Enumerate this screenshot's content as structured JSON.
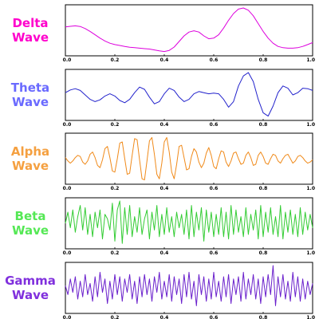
{
  "chart_data": [
    {
      "type": "line",
      "title": "",
      "label_lines": [
        "Delta",
        "Wave"
      ],
      "label_color": "#ff00cc",
      "line_color": "#dd00dd",
      "xlim": [
        0,
        1
      ],
      "ylim": [
        -1,
        1
      ],
      "x_ticks": [
        "0.0",
        "0.2",
        "0.4",
        "0.6",
        "0.8",
        "1.0"
      ],
      "grid": false,
      "series": [
        {
          "x": [
            0.0,
            0.02,
            0.04,
            0.06,
            0.08,
            0.1,
            0.12,
            0.14,
            0.16,
            0.18,
            0.2,
            0.22,
            0.24,
            0.26,
            0.28,
            0.3,
            0.32,
            0.34,
            0.36,
            0.38,
            0.4,
            0.42,
            0.44,
            0.46,
            0.48,
            0.5,
            0.52,
            0.54,
            0.56,
            0.58,
            0.6,
            0.62,
            0.64,
            0.66,
            0.68,
            0.7,
            0.72,
            0.74,
            0.76,
            0.78,
            0.8,
            0.82,
            0.84,
            0.86,
            0.88,
            0.9,
            0.92,
            0.94,
            0.96,
            0.98,
            1.0
          ],
          "values": [
            0.15,
            0.18,
            0.2,
            0.17,
            0.08,
            -0.05,
            -0.2,
            -0.35,
            -0.48,
            -0.58,
            -0.64,
            -0.68,
            -0.72,
            -0.76,
            -0.78,
            -0.8,
            -0.82,
            -0.84,
            -0.88,
            -0.92,
            -0.95,
            -0.9,
            -0.75,
            -0.5,
            -0.25,
            -0.08,
            -0.02,
            -0.08,
            -0.25,
            -0.38,
            -0.35,
            -0.2,
            0.1,
            0.45,
            0.75,
            0.95,
            1.0,
            0.9,
            0.65,
            0.3,
            -0.05,
            -0.35,
            -0.58,
            -0.72,
            -0.78,
            -0.8,
            -0.8,
            -0.78,
            -0.72,
            -0.64,
            -0.55
          ]
        }
      ]
    },
    {
      "type": "line",
      "title": "",
      "label_lines": [
        "Theta",
        "Wave"
      ],
      "label_color": "#6a6aff",
      "line_color": "#2222cc",
      "xlim": [
        0,
        1
      ],
      "ylim": [
        -1,
        1
      ],
      "x_ticks": [
        "0.0",
        "0.2",
        "0.4",
        "0.6",
        "0.8",
        "1.0"
      ],
      "grid": false,
      "series": [
        {
          "x": [
            0.0,
            0.02,
            0.04,
            0.06,
            0.08,
            0.1,
            0.12,
            0.14,
            0.16,
            0.18,
            0.2,
            0.22,
            0.24,
            0.26,
            0.28,
            0.3,
            0.32,
            0.34,
            0.36,
            0.38,
            0.4,
            0.42,
            0.44,
            0.46,
            0.48,
            0.5,
            0.52,
            0.54,
            0.56,
            0.58,
            0.6,
            0.62,
            0.64,
            0.66,
            0.68,
            0.7,
            0.72,
            0.74,
            0.76,
            0.78,
            0.8,
            0.82,
            0.84,
            0.86,
            0.88,
            0.9,
            0.92,
            0.94,
            0.96,
            0.98,
            1.0
          ],
          "values": [
            0.1,
            0.22,
            0.28,
            0.2,
            0.0,
            -0.2,
            -0.3,
            -0.22,
            -0.05,
            0.05,
            -0.05,
            -0.25,
            -0.35,
            -0.2,
            0.1,
            0.35,
            0.25,
            -0.1,
            -0.4,
            -0.3,
            0.05,
            0.3,
            0.2,
            -0.1,
            -0.3,
            -0.2,
            0.05,
            0.15,
            0.1,
            0.05,
            0.08,
            0.05,
            -0.2,
            -0.55,
            -0.3,
            0.4,
            0.85,
            1.0,
            0.6,
            -0.2,
            -0.8,
            -0.95,
            -0.5,
            0.1,
            0.4,
            0.3,
            0.0,
            0.1,
            0.3,
            0.28,
            0.2
          ]
        }
      ]
    },
    {
      "type": "line",
      "title": "",
      "label_lines": [
        "Alpha",
        "Wave"
      ],
      "label_color": "#f5a040",
      "line_color": "#f08a1a",
      "xlim": [
        0,
        1
      ],
      "ylim": [
        -1,
        1
      ],
      "x_ticks": [
        "0.0",
        "0.2",
        "0.4",
        "0.6",
        "0.8",
        "1.0"
      ],
      "grid": false,
      "series": [
        {
          "x": [
            0.0,
            0.01,
            0.02,
            0.03,
            0.04,
            0.05,
            0.06,
            0.07,
            0.08,
            0.09,
            0.1,
            0.11,
            0.12,
            0.13,
            0.14,
            0.15,
            0.16,
            0.17,
            0.18,
            0.19,
            0.2,
            0.21,
            0.22,
            0.23,
            0.24,
            0.25,
            0.26,
            0.27,
            0.28,
            0.29,
            0.3,
            0.31,
            0.32,
            0.33,
            0.34,
            0.35,
            0.36,
            0.37,
            0.38,
            0.39,
            0.4,
            0.41,
            0.42,
            0.43,
            0.44,
            0.45,
            0.46,
            0.47,
            0.48,
            0.49,
            0.5,
            0.51,
            0.52,
            0.53,
            0.54,
            0.55,
            0.56,
            0.57,
            0.58,
            0.59,
            0.6,
            0.61,
            0.62,
            0.63,
            0.64,
            0.65,
            0.66,
            0.67,
            0.68,
            0.69,
            0.7,
            0.71,
            0.72,
            0.73,
            0.74,
            0.75,
            0.76,
            0.77,
            0.78,
            0.79,
            0.8,
            0.81,
            0.82,
            0.83,
            0.84,
            0.85,
            0.86,
            0.87,
            0.88,
            0.89,
            0.9,
            0.91,
            0.92,
            0.93,
            0.94,
            0.95,
            0.96,
            0.97,
            0.98,
            0.99,
            1.0
          ],
          "values": [
            0.05,
            -0.1,
            -0.2,
            -0.1,
            0.05,
            0.15,
            0.1,
            -0.15,
            -0.25,
            -0.1,
            0.2,
            0.3,
            0.05,
            -0.3,
            -0.4,
            -0.05,
            0.45,
            0.55,
            0.05,
            -0.55,
            -0.6,
            0.0,
            0.7,
            0.75,
            0.0,
            -0.7,
            -0.65,
            0.15,
            0.9,
            0.85,
            -0.05,
            -0.9,
            -0.95,
            -0.1,
            0.8,
            0.95,
            0.2,
            -0.7,
            -0.9,
            -0.2,
            0.75,
            0.95,
            0.3,
            -0.6,
            -0.9,
            -0.25,
            0.55,
            0.6,
            0.05,
            -0.5,
            -0.45,
            0.1,
            0.45,
            0.3,
            -0.15,
            -0.4,
            -0.2,
            0.25,
            0.5,
            0.15,
            -0.35,
            -0.45,
            0.0,
            0.35,
            0.3,
            -0.15,
            -0.35,
            -0.1,
            0.25,
            0.3,
            0.0,
            -0.25,
            -0.2,
            0.15,
            0.3,
            0.05,
            -0.3,
            -0.25,
            0.15,
            0.3,
            0.1,
            -0.2,
            -0.25,
            0.0,
            0.2,
            0.15,
            -0.1,
            -0.2,
            0.0,
            0.15,
            0.2,
            0.0,
            -0.2,
            -0.1,
            0.1,
            0.15,
            0.05,
            -0.1,
            -0.2,
            -0.15,
            -0.05
          ]
        }
      ]
    },
    {
      "type": "line",
      "title": "",
      "label_lines": [
        "Beta",
        "Wave"
      ],
      "label_color": "#55e855",
      "line_color": "#33cc33",
      "xlim": [
        0,
        1
      ],
      "ylim": [
        -1,
        1
      ],
      "x_ticks": [
        "0.0",
        "0.2",
        "0.4",
        "0.6",
        "0.8",
        "1.0"
      ],
      "grid": false,
      "series": [
        {
          "x": [
            0.0,
            0.01,
            0.02,
            0.03,
            0.04,
            0.05,
            0.06,
            0.07,
            0.08,
            0.09,
            0.1,
            0.11,
            0.12,
            0.13,
            0.14,
            0.15,
            0.16,
            0.17,
            0.18,
            0.19,
            0.2,
            0.21,
            0.22,
            0.23,
            0.24,
            0.25,
            0.26,
            0.27,
            0.28,
            0.29,
            0.3,
            0.31,
            0.32,
            0.33,
            0.34,
            0.35,
            0.36,
            0.37,
            0.38,
            0.39,
            0.4,
            0.41,
            0.42,
            0.43,
            0.44,
            0.45,
            0.46,
            0.47,
            0.48,
            0.49,
            0.5,
            0.51,
            0.52,
            0.53,
            0.54,
            0.55,
            0.56,
            0.57,
            0.58,
            0.59,
            0.6,
            0.61,
            0.62,
            0.63,
            0.64,
            0.65,
            0.66,
            0.67,
            0.68,
            0.69,
            0.7,
            0.71,
            0.72,
            0.73,
            0.74,
            0.75,
            0.76,
            0.77,
            0.78,
            0.79,
            0.8,
            0.81,
            0.82,
            0.83,
            0.84,
            0.85,
            0.86,
            0.87,
            0.88,
            0.89,
            0.9,
            0.91,
            0.92,
            0.93,
            0.94,
            0.95,
            0.96,
            0.97,
            0.98,
            0.99,
            1.0
          ],
          "values": [
            0.0,
            0.5,
            -0.2,
            0.6,
            -0.4,
            0.3,
            0.8,
            -0.3,
            0.7,
            -0.5,
            0.4,
            -0.6,
            0.5,
            -0.2,
            0.6,
            -0.7,
            0.4,
            0.2,
            -0.3,
            0.9,
            -0.8,
            0.6,
            1.0,
            -0.9,
            0.7,
            -0.5,
            0.8,
            -0.6,
            0.3,
            -0.4,
            0.7,
            -0.5,
            0.2,
            0.6,
            -0.7,
            0.5,
            -0.3,
            0.8,
            -0.6,
            0.4,
            -0.5,
            0.7,
            -0.4,
            0.3,
            -0.6,
            0.5,
            -0.2,
            0.4,
            -0.5,
            0.6,
            -0.7,
            0.8,
            -0.6,
            0.5,
            -0.3,
            0.7,
            -0.8,
            0.6,
            -0.4,
            0.5,
            -0.6,
            0.4,
            -0.5,
            0.7,
            -0.6,
            0.5,
            -0.7,
            0.8,
            -0.5,
            0.6,
            -0.4,
            0.3,
            -0.6,
            0.7,
            -0.5,
            0.4,
            -0.3,
            0.6,
            -0.7,
            0.8,
            -0.6,
            0.5,
            -0.4,
            0.7,
            -0.5,
            0.3,
            -0.6,
            0.8,
            -0.7,
            0.5,
            -0.4,
            0.6,
            -0.5,
            0.4,
            -0.6,
            0.7,
            -0.5,
            0.5,
            -0.3,
            0.4,
            -0.2
          ]
        }
      ]
    },
    {
      "type": "line",
      "title": "",
      "label_lines": [
        "Gamma",
        "Wave"
      ],
      "label_color": "#8030dd",
      "line_color": "#6a20cc",
      "xlim": [
        0,
        1
      ],
      "ylim": [
        -1,
        1
      ],
      "x_ticks": [
        "0.0",
        "0.2",
        "0.4",
        "0.6",
        "0.8",
        "1.0"
      ],
      "grid": false,
      "series": [
        {
          "x": [
            0.0,
            0.01,
            0.02,
            0.03,
            0.04,
            0.05,
            0.06,
            0.07,
            0.08,
            0.09,
            0.1,
            0.11,
            0.12,
            0.13,
            0.14,
            0.15,
            0.16,
            0.17,
            0.18,
            0.19,
            0.2,
            0.21,
            0.22,
            0.23,
            0.24,
            0.25,
            0.26,
            0.27,
            0.28,
            0.29,
            0.3,
            0.31,
            0.32,
            0.33,
            0.34,
            0.35,
            0.36,
            0.37,
            0.38,
            0.39,
            0.4,
            0.41,
            0.42,
            0.43,
            0.44,
            0.45,
            0.46,
            0.47,
            0.48,
            0.49,
            0.5,
            0.51,
            0.52,
            0.53,
            0.54,
            0.55,
            0.56,
            0.57,
            0.58,
            0.59,
            0.6,
            0.61,
            0.62,
            0.63,
            0.64,
            0.65,
            0.66,
            0.67,
            0.68,
            0.69,
            0.7,
            0.71,
            0.72,
            0.73,
            0.74,
            0.75,
            0.76,
            0.77,
            0.78,
            0.79,
            0.8,
            0.81,
            0.82,
            0.83,
            0.84,
            0.85,
            0.86,
            0.87,
            0.88,
            0.89,
            0.9,
            0.91,
            0.92,
            0.93,
            0.94,
            0.95,
            0.96,
            0.97,
            0.98,
            0.99,
            1.0
          ],
          "values": [
            0.1,
            -0.3,
            0.4,
            -0.2,
            0.5,
            -0.5,
            0.3,
            -0.4,
            0.6,
            -0.3,
            0.2,
            -0.6,
            0.5,
            -0.4,
            0.7,
            -0.2,
            0.4,
            -0.7,
            0.3,
            -0.5,
            0.6,
            -0.3,
            0.5,
            -0.6,
            0.4,
            -0.2,
            0.6,
            -0.5,
            0.3,
            -0.7,
            0.5,
            -0.4,
            0.6,
            -0.3,
            0.4,
            -0.6,
            0.5,
            -0.2,
            0.7,
            -0.5,
            0.3,
            -0.4,
            0.6,
            -0.6,
            0.5,
            -0.3,
            0.4,
            -0.7,
            0.6,
            -0.4,
            0.7,
            -0.5,
            0.3,
            -0.8,
            0.6,
            -0.3,
            0.5,
            -0.6,
            0.4,
            -0.5,
            0.7,
            -0.4,
            0.3,
            -0.6,
            0.5,
            -0.4,
            0.6,
            -0.7,
            0.4,
            -0.3,
            0.5,
            -0.6,
            0.7,
            -0.5,
            0.4,
            -0.3,
            0.6,
            -0.5,
            0.4,
            -0.7,
            0.5,
            -0.4,
            0.6,
            -0.3,
            1.0,
            -0.8,
            0.5,
            -0.4,
            0.6,
            -0.5,
            0.3,
            -0.6,
            0.7,
            -0.4,
            0.5,
            -0.6,
            0.4,
            -0.5,
            0.3,
            -0.3,
            0.2
          ]
        }
      ]
    }
  ]
}
